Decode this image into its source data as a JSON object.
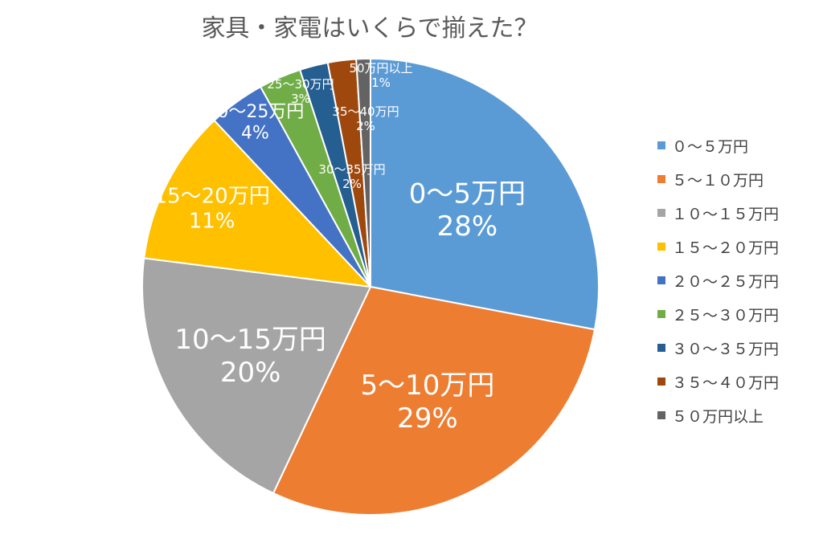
{
  "chart_data": {
    "type": "pie",
    "title": "家具・家電はいくらで揃えた？",
    "slices": [
      {
        "category": "0～5万円",
        "legend": "０～５万円",
        "value": 28,
        "pct": "28%",
        "color": "#5B9BD5"
      },
      {
        "category": "5～10万円",
        "legend": "５～１０万円",
        "value": 29,
        "pct": "29%",
        "color": "#ED7D31"
      },
      {
        "category": "10～15万円",
        "legend": "１０～１５万円",
        "value": 20,
        "pct": "20%",
        "color": "#A5A5A5"
      },
      {
        "category": "15～20万円",
        "legend": "１５～２０万円",
        "value": 11,
        "pct": "11%",
        "color": "#FFC000"
      },
      {
        "category": "20～25万円",
        "legend": "２０～２５万円",
        "value": 4,
        "pct": "4%",
        "color": "#4472C4"
      },
      {
        "category": "25～30万円",
        "legend": "２５～３０万円",
        "value": 3,
        "pct": "3%",
        "color": "#70AD47"
      },
      {
        "category": "30～35万円",
        "legend": "３０～３５万円",
        "value": 2,
        "pct": "2%",
        "color": "#255E91"
      },
      {
        "category": "35～40万円",
        "legend": "３５～４０万円",
        "value": 2,
        "pct": "2%",
        "color": "#9E480E"
      },
      {
        "category": "50万円以上",
        "legend": "５０万円以上",
        "value": 1,
        "pct": "1%",
        "color": "#636363"
      }
    ],
    "legend_position": "right"
  }
}
